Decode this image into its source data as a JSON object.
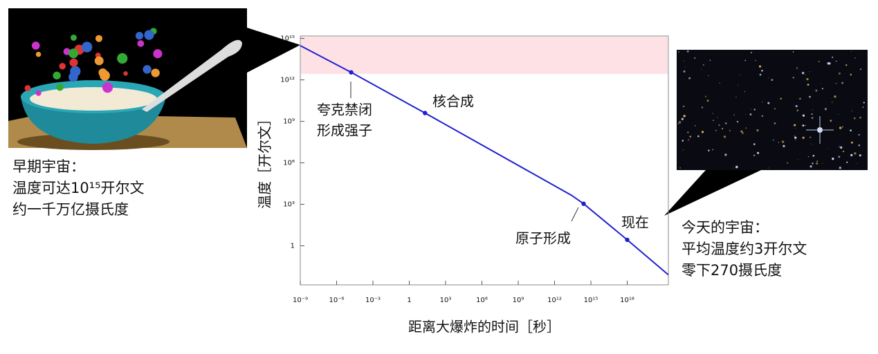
{
  "chart_data": {
    "type": "line",
    "x_label": "距离大爆炸的时间［秒］",
    "y_label": "温度［开尔文］",
    "log_x": true,
    "log_y": true,
    "xlim": [
      1e-09,
      2.5e+21
    ],
    "ylim": [
      0.0015,
      1500000000000000.0
    ],
    "xticks": [
      {
        "value": 1e-09,
        "label": "10⁻⁹"
      },
      {
        "value": 1e-06,
        "label": "10⁻⁶"
      },
      {
        "value": 0.001,
        "label": "10⁻³"
      },
      1,
      {
        "value": 1000.0,
        "label": "10³"
      },
      {
        "value": 1000000.0,
        "label": "10⁶"
      },
      {
        "value": 1000000000.0,
        "label": "10⁹"
      },
      {
        "value": 1000000000000.0,
        "label": "10¹²"
      },
      {
        "value": 1000000000000000.0,
        "label": "10¹⁵"
      },
      {
        "value": 1e+18,
        "label": "10¹⁸"
      }
    ],
    "yticks": [
      1,
      {
        "value": 1000.0,
        "label": "10³"
      },
      {
        "value": 1000000.0,
        "label": "10⁶"
      },
      {
        "value": 1000000000.0,
        "label": "10⁹"
      },
      {
        "value": 1000000000000.0,
        "label": "10¹²"
      },
      {
        "value": 1000000000000000.0,
        "label": "10¹⁵"
      }
    ],
    "shaded_band": {
      "ylim": [
        3000000000000.0,
        1500000000000000.0
      ],
      "color": "#fde1e5"
    },
    "series": [
      {
        "color": "#1f1fd0",
        "x": [
          1e-09,
          1.6e-05,
          20,
          25000000000000.0,
          250000000000000.0,
          1e+18,
          2.5e+21
        ],
        "values": [
          300000000000000.0,
          3500000000000.0,
          4000000000.0,
          4500.0,
          1100.0,
          2.7,
          0.008
        ]
      },
      {
        "color": "#1f1fd0",
        "marker": true,
        "x": [
          1.6e-05,
          20,
          250000000000000.0,
          1e+18
        ],
        "values": [
          3500000000000.0,
          4000000000.0,
          1100.0,
          2.7
        ]
      }
    ],
    "annotations": [
      {
        "lines": [
          "夸克禁闭",
          "形成强子"
        ]
      },
      {
        "lines": [
          "核合成"
        ]
      },
      {
        "lines": [
          "原子形成"
        ]
      },
      {
        "lines": [
          "现在"
        ]
      }
    ],
    "early_universe": [
      "早期宇宙：",
      "温度可达10¹⁵开尔文",
      "约一千万亿摄氏度"
    ],
    "today_universe": [
      "今天的宇宙：",
      "平均温度约3开尔文",
      "零下270摄氏度"
    ]
  }
}
